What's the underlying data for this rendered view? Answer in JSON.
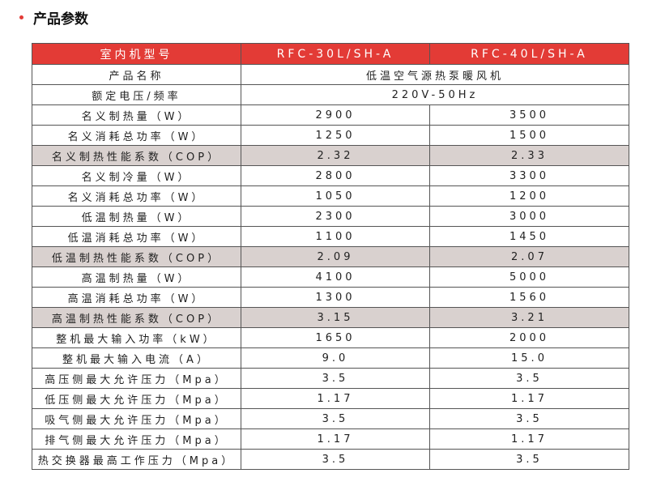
{
  "section_title": "产品参数",
  "accent_color": "#e33b36",
  "table": {
    "header": {
      "label": "室内机型号",
      "models": [
        "RFC-30L/SH-A",
        "RFC-40L/SH-A"
      ]
    },
    "product_name": {
      "label": "产品名称",
      "value": "低温空气源热泵暖风机"
    },
    "voltage": {
      "label": "额定电压/频率",
      "value": "220V-50Hz"
    },
    "rows": [
      {
        "label": "名义制热量（W）",
        "v1": "2900",
        "v2": "3500",
        "highlight": false
      },
      {
        "label": "名义消耗总功率（W）",
        "v1": "1250",
        "v2": "1500",
        "highlight": false
      },
      {
        "label": "名义制热性能系数（COP）",
        "v1": "2.32",
        "v2": "2.33",
        "highlight": true
      },
      {
        "label": "名义制冷量（W）",
        "v1": "2800",
        "v2": "3300",
        "highlight": false
      },
      {
        "label": "名义消耗总功率（W）",
        "v1": "1050",
        "v2": "1200",
        "highlight": false
      },
      {
        "label": "低温制热量（W）",
        "v1": "2300",
        "v2": "3000",
        "highlight": false
      },
      {
        "label": "低温消耗总功率（W）",
        "v1": "1100",
        "v2": "1450",
        "highlight": false
      },
      {
        "label": "低温制热性能系数（COP）",
        "v1": "2.09",
        "v2": "2.07",
        "highlight": true
      },
      {
        "label": "高温制热量（W）",
        "v1": "4100",
        "v2": "5000",
        "highlight": false
      },
      {
        "label": "高温消耗总功率（W）",
        "v1": "1300",
        "v2": "1560",
        "highlight": false
      },
      {
        "label": "高温制热性能系数（COP）",
        "v1": "3.15",
        "v2": "3.21",
        "highlight": true
      },
      {
        "label": "整机最大输入功率（kW）",
        "v1": "1650",
        "v2": "2000",
        "highlight": false
      },
      {
        "label": "整机最大输入电流（A）",
        "v1": "9.0",
        "v2": "15.0",
        "highlight": false
      },
      {
        "label": "高压侧最大允许压力（Mpa）",
        "v1": "3.5",
        "v2": "3.5",
        "highlight": false
      },
      {
        "label": "低压侧最大允许压力（Mpa）",
        "v1": "1.17",
        "v2": "1.17",
        "highlight": false
      },
      {
        "label": "吸气侧最大允许压力（Mpa）",
        "v1": "3.5",
        "v2": "3.5",
        "highlight": false
      },
      {
        "label": "排气侧最大允许压力（Mpa）",
        "v1": "1.17",
        "v2": "1.17",
        "highlight": false
      },
      {
        "label": "热交换器最高工作压力（Mpa）",
        "v1": "3.5",
        "v2": "3.5",
        "highlight": false
      }
    ]
  }
}
